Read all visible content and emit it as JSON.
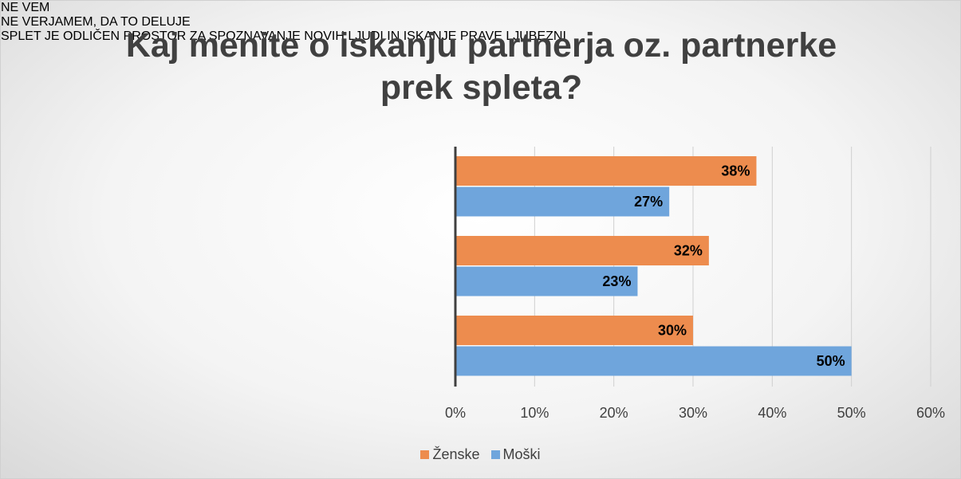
{
  "chart_data": {
    "type": "bar",
    "orientation": "horizontal",
    "title": "Kaj menite o iskanju partnerja oz. partnerke prek spleta?",
    "categories": [
      "NE VEM",
      "NE VERJAMEM, DA TO DELUJE",
      "SPLET JE ODLIČEN PROSTOR ZA SPOZNAVANJE NOVIH LJUDI IN ISKANJE PRAVE LJUBEZNI"
    ],
    "series": [
      {
        "name": "Ženske",
        "color": "#ed8c4e",
        "values": [
          38,
          32,
          30
        ],
        "value_labels": [
          "38%",
          "32%",
          "30%"
        ]
      },
      {
        "name": "Moški",
        "color": "#6fa5dc",
        "values": [
          27,
          23,
          50
        ],
        "value_labels": [
          "27%",
          "23%",
          "50%"
        ]
      }
    ],
    "xlim": [
      0,
      60
    ],
    "xticks": [
      {
        "value": 0,
        "label": "0%"
      },
      {
        "value": 10,
        "label": "10%"
      },
      {
        "value": 20,
        "label": "20%"
      },
      {
        "value": 30,
        "label": "30%"
      },
      {
        "value": 40,
        "label": "40%"
      },
      {
        "value": 50,
        "label": "50%"
      },
      {
        "value": 60,
        "label": "60%"
      }
    ],
    "grid": true,
    "legend": "bottom"
  }
}
